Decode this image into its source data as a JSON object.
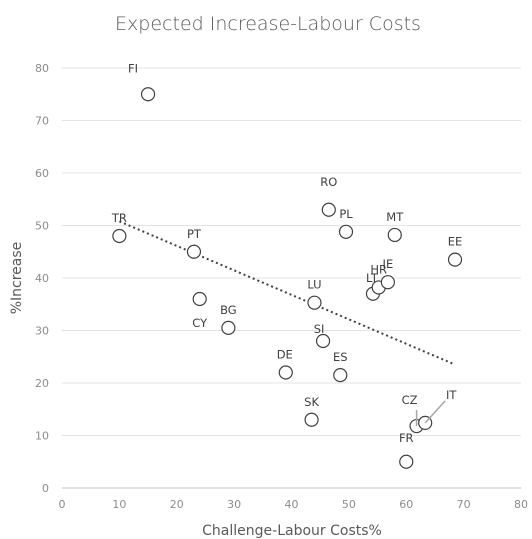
{
  "chart_data": {
    "type": "scatter",
    "title": "Expected Increase-Labour Costs",
    "xlabel": "Challenge-Labour Costs%",
    "ylabel": "%Increase",
    "xlim": [
      0,
      80
    ],
    "ylim": [
      0,
      80
    ],
    "x_ticks": [
      "0",
      "10",
      "20",
      "30",
      "40",
      "50",
      "60",
      "70",
      "80"
    ],
    "y_ticks": [
      "0",
      "10",
      "20",
      "30",
      "40",
      "50",
      "60",
      "70",
      "80"
    ],
    "grid": "horizontal",
    "trendline": "linear",
    "points": [
      {
        "label": "FI",
        "x": 15,
        "y": 75
      },
      {
        "label": "TR",
        "x": 10,
        "y": 48
      },
      {
        "label": "PT",
        "x": 23,
        "y": 45
      },
      {
        "label": "CY",
        "x": 24,
        "y": 36
      },
      {
        "label": "BG",
        "x": 29,
        "y": 30.5
      },
      {
        "label": "RO",
        "x": 46.5,
        "y": 53
      },
      {
        "label": "PL",
        "x": 49.5,
        "y": 48.8
      },
      {
        "label": "MT",
        "x": 58,
        "y": 48.2
      },
      {
        "label": "EE",
        "x": 68.5,
        "y": 43.5
      },
      {
        "label": "LU",
        "x": 44,
        "y": 35.3
      },
      {
        "label": "SI",
        "x": 45.5,
        "y": 28
      },
      {
        "label": "DE",
        "x": 39,
        "y": 22
      },
      {
        "label": "ES",
        "x": 48.5,
        "y": 21.5
      },
      {
        "label": "SK",
        "x": 43.5,
        "y": 13
      },
      {
        "label": "LT",
        "x": 54.2,
        "y": 37
      },
      {
        "label": "HR",
        "x": 55.2,
        "y": 38.2
      },
      {
        "label": "IE",
        "x": 56.8,
        "y": 39.2
      },
      {
        "label": "CZ",
        "x": 61.8,
        "y": 11.8
      },
      {
        "label": "IT",
        "x": 63.3,
        "y": 12.4
      },
      {
        "label": "FR",
        "x": 60,
        "y": 5
      }
    ]
  }
}
